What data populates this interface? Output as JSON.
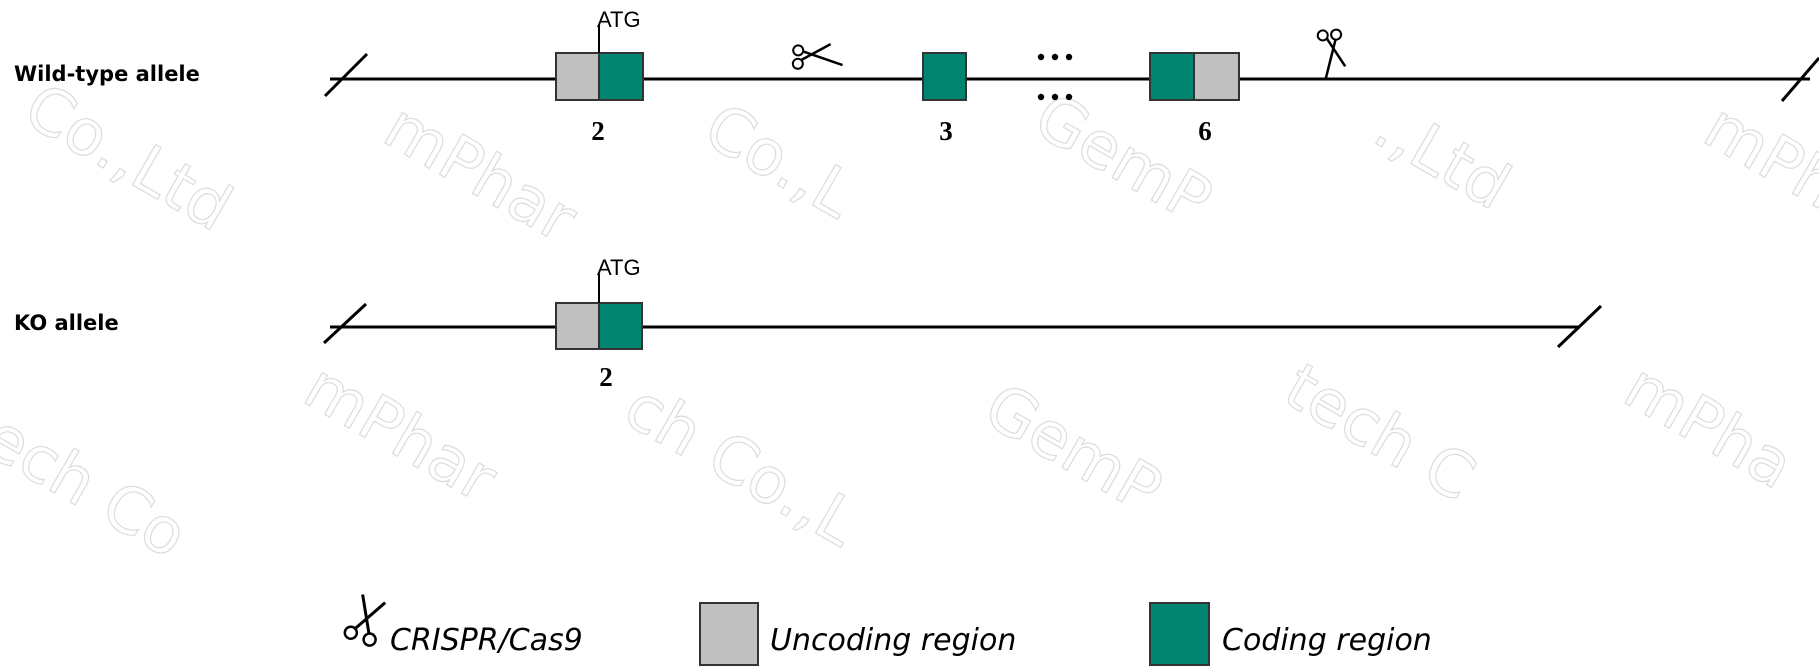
{
  "colors": {
    "coding": "#00836f",
    "uncoding": "#c0c0c0",
    "line": "#000000",
    "watermark": "#dcdcdc"
  },
  "wildtype": {
    "label": "Wild-type allele",
    "atg": "ATG",
    "exon_labels": [
      "2",
      "3",
      "6"
    ]
  },
  "ko": {
    "label": "KO allele",
    "atg": "ATG",
    "exon_labels": [
      "2"
    ]
  },
  "legend": {
    "crispr_icon": "scissors-icon",
    "crispr": "CRISPR/Cas9",
    "uncoding": "Uncoding region",
    "coding": "Coding region"
  }
}
